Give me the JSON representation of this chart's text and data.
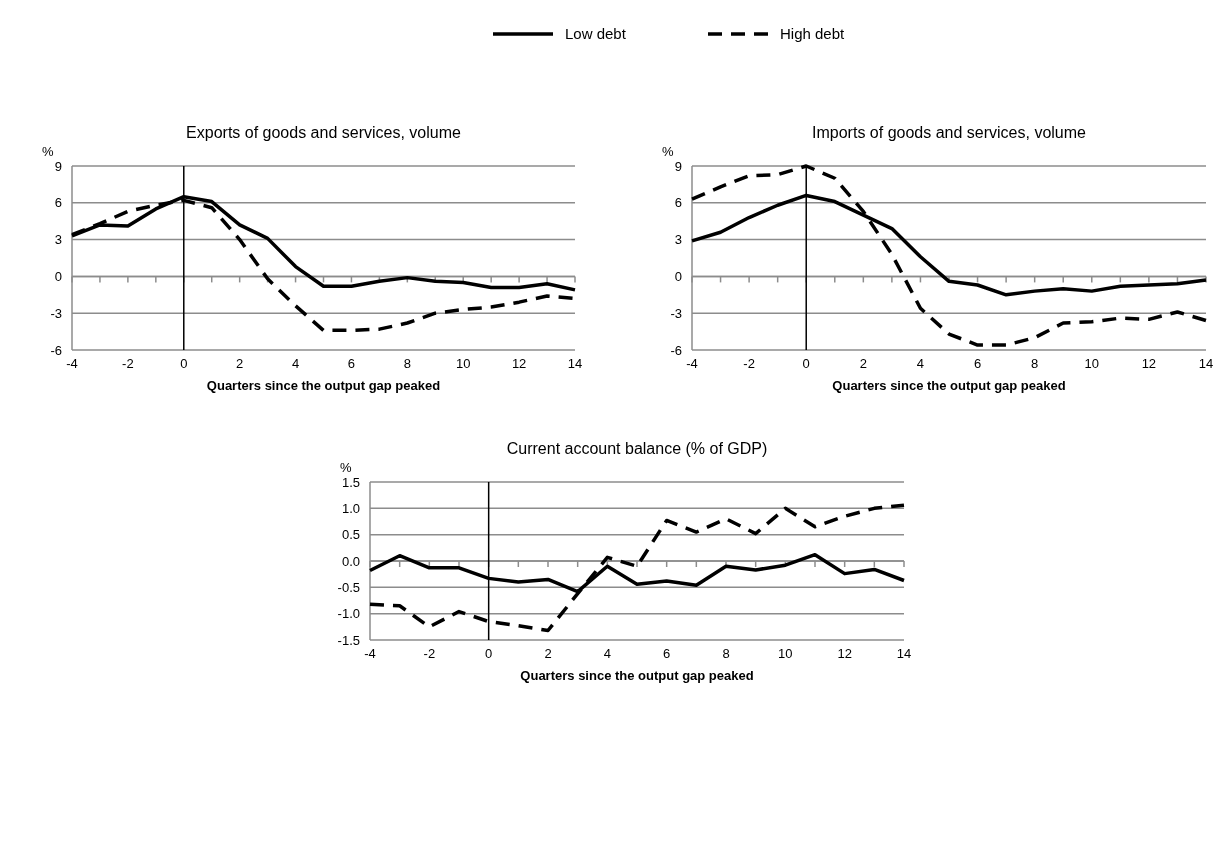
{
  "chart_data": [
    {
      "type": "line",
      "title": "Exports of goods and services, volume",
      "xlabel": "Quarters since the output gap peaked",
      "ylabel": "%",
      "x": [
        -4,
        -3,
        -2,
        -1,
        0,
        1,
        2,
        3,
        4,
        5,
        6,
        7,
        8,
        9,
        10,
        11,
        12,
        13,
        14
      ],
      "series": [
        {
          "name": "Low debt",
          "color": "#000000",
          "line_style": "solid",
          "values": [
            3.3,
            4.2,
            4.1,
            5.5,
            6.5,
            6.1,
            4.2,
            3.1,
            0.8,
            -0.8,
            -0.8,
            -0.4,
            -0.1,
            -0.4,
            -0.5,
            -0.9,
            -0.9,
            -0.6,
            -1.1
          ]
        },
        {
          "name": "High debt",
          "color": "#000000",
          "line_style": "dashed",
          "values": [
            3.4,
            4.3,
            5.3,
            5.8,
            6.2,
            5.6,
            3.0,
            -0.2,
            -2.4,
            -4.4,
            -4.4,
            -4.3,
            -3.8,
            -3.0,
            -2.7,
            -2.5,
            -2.1,
            -1.6,
            -1.8
          ]
        }
      ],
      "xlim": [
        -4,
        14
      ],
      "xticks": [
        -4,
        {
          "value": -3,
          "label": null
        },
        -2,
        {
          "value": -1,
          "label": null
        },
        0,
        {
          "value": 1,
          "label": null
        },
        2,
        {
          "value": 3,
          "label": null
        },
        4,
        {
          "value": 5,
          "label": null
        },
        6,
        {
          "value": 7,
          "label": null
        },
        8,
        {
          "value": 9,
          "label": null
        },
        10,
        {
          "value": 11,
          "label": null
        },
        12,
        {
          "value": 13,
          "label": null
        },
        14
      ],
      "ylim": [
        -6,
        9
      ],
      "yticks": [
        -6,
        -3,
        0,
        3,
        6,
        9
      ],
      "grid": "y",
      "legend": "top",
      "marker": "none",
      "ref_lines": [
        {
          "axis": "x",
          "value": 0,
          "color": "#000000"
        }
      ]
    },
    {
      "type": "line",
      "title": "Imports of goods and services, volume",
      "xlabel": "Quarters since the output gap peaked",
      "ylabel": "%",
      "x": [
        -4,
        -3,
        -2,
        -1,
        0,
        1,
        2,
        3,
        4,
        5,
        6,
        7,
        8,
        9,
        10,
        11,
        12,
        13,
        14
      ],
      "series": [
        {
          "color": "#000000",
          "line_style": "solid",
          "values": [
            2.9,
            3.6,
            4.8,
            5.8,
            6.6,
            6.1,
            5.0,
            3.9,
            1.6,
            -0.4,
            -0.7,
            -1.5,
            -1.2,
            -1.0,
            -1.2,
            -0.8,
            -0.7,
            -0.6,
            -0.3
          ]
        },
        {
          "color": "#000000",
          "line_style": "dashed",
          "values": [
            6.3,
            7.3,
            8.2,
            8.3,
            9.0,
            8.0,
            5.3,
            1.8,
            -2.6,
            -4.7,
            -5.6,
            -5.6,
            -5.0,
            -3.8,
            -3.7,
            -3.4,
            -3.5,
            -2.9,
            -3.6
          ]
        }
      ],
      "xlim": [
        -4,
        14
      ],
      "xticks": [
        -4,
        {
          "value": -3,
          "label": null
        },
        -2,
        {
          "value": -1,
          "label": null
        },
        0,
        {
          "value": 1,
          "label": null
        },
        2,
        {
          "value": 3,
          "label": null
        },
        4,
        {
          "value": 5,
          "label": null
        },
        6,
        {
          "value": 7,
          "label": null
        },
        8,
        {
          "value": 9,
          "label": null
        },
        10,
        {
          "value": 11,
          "label": null
        },
        12,
        {
          "value": 13,
          "label": null
        },
        14
      ],
      "ylim": [
        -6,
        9
      ],
      "yticks": [
        -6,
        -3,
        0,
        3,
        6,
        9
      ],
      "grid": "y",
      "marker": "none",
      "ref_lines": [
        {
          "axis": "x",
          "value": 0,
          "color": "#000000"
        }
      ]
    },
    {
      "type": "line",
      "title": "Current account balance (% of GDP)",
      "xlabel": "Quarters since the output gap peaked",
      "ylabel": "%",
      "x": [
        -4,
        -3,
        -2,
        -1,
        0,
        1,
        2,
        3,
        4,
        5,
        6,
        7,
        8,
        9,
        10,
        11,
        12,
        13,
        14
      ],
      "series": [
        {
          "color": "#000000",
          "line_style": "solid",
          "values": [
            -0.18,
            0.1,
            -0.13,
            -0.13,
            -0.33,
            -0.4,
            -0.35,
            -0.58,
            -0.1,
            -0.44,
            -0.38,
            -0.46,
            -0.1,
            -0.17,
            -0.08,
            0.12,
            -0.24,
            -0.16,
            -0.37
          ]
        },
        {
          "color": "#000000",
          "line_style": "dashed",
          "values": [
            -0.82,
            -0.85,
            -1.25,
            -0.96,
            -1.15,
            -1.23,
            -1.32,
            -0.62,
            0.07,
            -0.1,
            0.77,
            0.55,
            0.8,
            0.52,
            1.0,
            0.65,
            0.85,
            1.0,
            1.06
          ]
        }
      ],
      "xlim": [
        -4,
        14
      ],
      "xticks": [
        -4,
        {
          "value": -3,
          "label": null
        },
        -2,
        {
          "value": -1,
          "label": null
        },
        0,
        {
          "value": 1,
          "label": null
        },
        2,
        {
          "value": 3,
          "label": null
        },
        4,
        {
          "value": 5,
          "label": null
        },
        6,
        {
          "value": 7,
          "label": null
        },
        8,
        {
          "value": 9,
          "label": null
        },
        10,
        {
          "value": 11,
          "label": null
        },
        12,
        {
          "value": 13,
          "label": null
        },
        14
      ],
      "ylim": [
        -1.5,
        1.5
      ],
      "yticks": [
        {
          "value": -1.5,
          "label": "-1.5"
        },
        {
          "value": -1,
          "label": "-1.0"
        },
        {
          "value": -0.5,
          "label": "-0.5"
        },
        {
          "value": 0,
          "label": "0.0"
        },
        {
          "value": 0.5,
          "label": "0.5"
        },
        {
          "value": 1,
          "label": "1.0"
        },
        {
          "value": 1.5,
          "label": "1.5"
        }
      ],
      "grid": "y",
      "marker": "none",
      "ref_lines": [
        {
          "axis": "x",
          "value": 0,
          "color": "#000000"
        }
      ]
    }
  ]
}
